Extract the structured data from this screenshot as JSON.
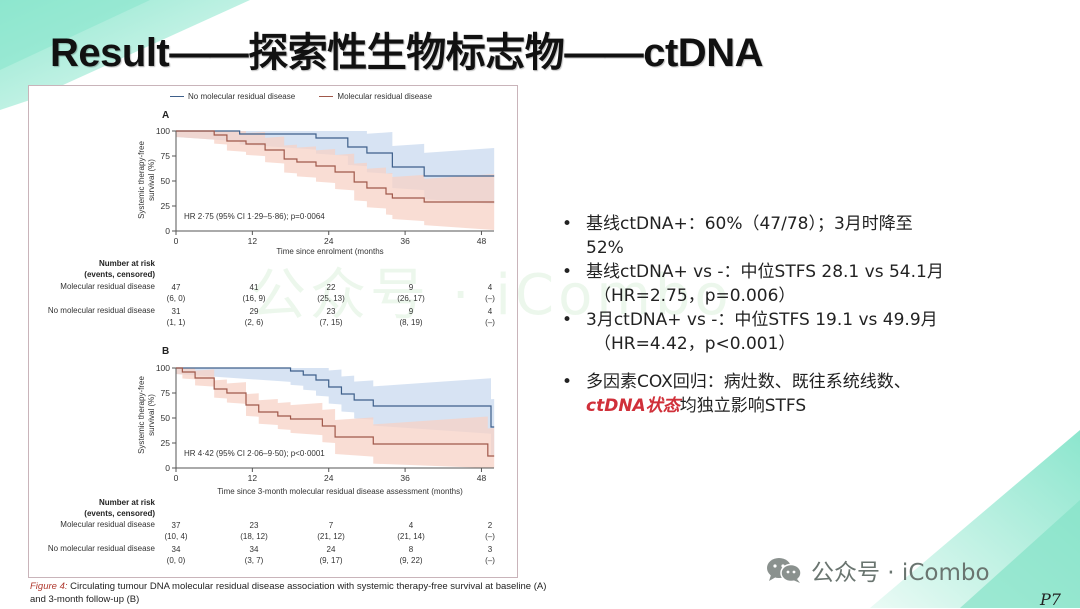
{
  "slide": {
    "title": "Result——探索性生物标志物——ctDNA",
    "page_number": "P7",
    "brand": {
      "icon": "wechat-icon",
      "label": "公众号 · iCombo"
    },
    "watermark": "公众号 · iCombo",
    "colors": {
      "accent_teal": "#7fe3c8",
      "highlight_red": "#d0303a",
      "no_mrd_line": "#3e5f8a",
      "mrd_line": "#a0584a",
      "no_mrd_band": "#c9d9ef",
      "mrd_band": "#f7d2c6"
    }
  },
  "figure": {
    "legend": [
      {
        "label": "No molecular residual disease",
        "color": "#3e5f8a"
      },
      {
        "label": "Molecular residual disease",
        "color": "#a0584a"
      }
    ],
    "caption_label": "Figure 4:",
    "caption_text": " Circulating tumour DNA molecular residual disease association with systemic therapy-free survival at baseline (A) and 3-month follow-up (B)",
    "risk_header_line1": "Number at risk",
    "risk_header_line2": "(events, censored)",
    "panels": [
      {
        "label": "A",
        "ylabel_line1": "Systemic therapy-free",
        "ylabel_line2": "survival (%)",
        "xlabel": "Time since enrolment (months",
        "annotation": "HR 2·75 (95% CI 1·29–5·86); p=0·0064",
        "yticks": [
          "0",
          "25",
          "50",
          "75",
          "100"
        ],
        "xticks": [
          "0",
          "12",
          "24",
          "36",
          "48"
        ],
        "risk_rows": [
          {
            "label": "Molecular residual disease",
            "n": [
              "47",
              "41",
              "22",
              "9",
              "4"
            ],
            "ec": [
              "(6, 0)",
              "(16, 9)",
              "(25, 13)",
              "(26, 17)",
              "(–)"
            ]
          },
          {
            "label": "No molecular residual disease",
            "n": [
              "31",
              "29",
              "23",
              "9",
              "4"
            ],
            "ec": [
              "(1, 1)",
              "(2, 6)",
              "(7, 15)",
              "(8, 19)",
              "(–)"
            ]
          }
        ]
      },
      {
        "label": "B",
        "ylabel_line1": "Systemic therapy-free",
        "ylabel_line2": "survival (%)",
        "xlabel": "Time since 3-month molecular residual disease assessment (months)",
        "annotation": "HR 4·42 (95% CI 2·06–9·50); p<0·0001",
        "yticks": [
          "0",
          "25",
          "50",
          "75",
          "100"
        ],
        "xticks": [
          "0",
          "12",
          "24",
          "36",
          "48"
        ],
        "risk_rows": [
          {
            "label": "Molecular residual disease",
            "n": [
              "37",
              "23",
              "7",
              "4",
              "2"
            ],
            "ec": [
              "(10, 4)",
              "(18, 12)",
              "(21, 12)",
              "(21, 14)",
              "(–)"
            ]
          },
          {
            "label": "No molecular residual disease",
            "n": [
              "34",
              "34",
              "24",
              "8",
              "3"
            ],
            "ec": [
              "(0, 0)",
              "(3, 7)",
              "(9, 17)",
              "(9, 22)",
              "(–)"
            ]
          }
        ]
      }
    ]
  },
  "bullets": [
    {
      "line1": "基线ctDNA+：60%（47/78）；3月时降至",
      "line2": "52%"
    },
    {
      "line1": "基线ctDNA+ vs -：中位STFS 28.1 vs 54.1月",
      "line2": "（HR=2.75，p=0.006）"
    },
    {
      "line1": "3月ctDNA+ vs -：中位STFS 19.1 vs 49.9月",
      "line2": "（HR=4.42，p<0.001）"
    },
    {
      "line1": "多因素COX回归：病灶数、既往系统线数、",
      "line2_highlight": "ctDNA状态",
      "line2_rest": "均独立影响STFS"
    }
  ],
  "chart_data": [
    {
      "type": "line",
      "title": "A",
      "xlabel": "Time since enrolment (months",
      "ylabel": "Systemic therapy-free survival (%)",
      "xlim": [
        0,
        50
      ],
      "ylim": [
        0,
        100
      ],
      "xticks": [
        0,
        12,
        24,
        36,
        48
      ],
      "yticks": [
        0,
        25,
        50,
        75,
        100
      ],
      "annotation": "HR 2·75 (95% CI 1·29–5·86); p=0·0064",
      "legend_position": "top",
      "series": [
        {
          "name": "No molecular residual disease",
          "step": true,
          "x": [
            0,
            10,
            10,
            22,
            22,
            27,
            27,
            30,
            30,
            34,
            34,
            39,
            39,
            50
          ],
          "y": [
            100,
            100,
            97,
            97,
            93,
            93,
            84,
            84,
            78,
            78,
            64,
            64,
            55,
            55
          ]
        },
        {
          "name": "Molecular residual disease",
          "step": true,
          "x": [
            0,
            6,
            6,
            8,
            8,
            11,
            11,
            14,
            14,
            17,
            17,
            19,
            19,
            22,
            22,
            25,
            25,
            28,
            28,
            30,
            30,
            33,
            33,
            34,
            34,
            39,
            39,
            50
          ],
          "y": [
            100,
            100,
            96,
            96,
            90,
            90,
            87,
            87,
            81,
            81,
            72,
            72,
            69,
            69,
            65,
            65,
            59,
            59,
            49,
            49,
            43,
            43,
            37,
            37,
            33,
            33,
            29,
            29
          ]
        }
      ]
    },
    {
      "type": "line",
      "title": "B",
      "xlabel": "Time since 3-month molecular residual disease assessment (months)",
      "ylabel": "Systemic therapy-free survival (%)",
      "xlim": [
        0,
        50
      ],
      "ylim": [
        0,
        100
      ],
      "xticks": [
        0,
        12,
        24,
        36,
        48
      ],
      "yticks": [
        0,
        25,
        50,
        75,
        100
      ],
      "annotation": "HR 4·42 (95% CI 2·06–9·50); p<0·0001",
      "series": [
        {
          "name": "No molecular residual disease",
          "step": true,
          "x": [
            0,
            18,
            18,
            20,
            20,
            22,
            22,
            24,
            24,
            26,
            26,
            28,
            28,
            31,
            31,
            35,
            35,
            49.5,
            49.5,
            50
          ],
          "y": [
            100,
            100,
            97,
            97,
            93,
            93,
            88,
            88,
            81,
            81,
            74,
            74,
            68,
            68,
            62,
            62,
            62,
            62,
            41,
            41
          ]
        },
        {
          "name": "Molecular residual disease",
          "step": true,
          "x": [
            0,
            1,
            1,
            3,
            3,
            6,
            6,
            8,
            8,
            11,
            11,
            13,
            13,
            16,
            16,
            18,
            18,
            23,
            23,
            25,
            25,
            31,
            31,
            49,
            49,
            50
          ],
          "y": [
            100,
            100,
            96,
            96,
            90,
            90,
            79,
            79,
            75,
            75,
            63,
            63,
            56,
            56,
            52,
            52,
            49,
            49,
            42,
            42,
            31,
            31,
            24,
            24,
            12,
            12
          ]
        }
      ]
    }
  ]
}
